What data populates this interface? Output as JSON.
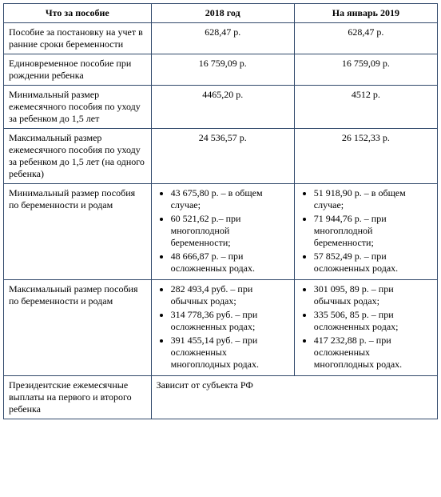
{
  "header": {
    "col1": "Что за пособие",
    "col2": "2018 год",
    "col3": "На январь 2019"
  },
  "rows": {
    "r1": {
      "label": "Пособие за постановку на учет в ранние сроки беременности",
      "v2018": "628,47 р.",
      "v2019": "628,47 р."
    },
    "r2": {
      "label": "Единовременное пособие при рождении ребенка",
      "v2018": "16 759,09 р.",
      "v2019": "16 759,09 р."
    },
    "r3": {
      "label": "Минимальный размер ежемесячного пособия по уходу за ребенком до 1,5 лет",
      "v2018": "4465,20 р.",
      "v2019": "4512 р."
    },
    "r4": {
      "label": "Максимальный размер ежемесячного пособия по уходу за ребенком до 1,5 лет (на одного ребенка)",
      "v2018": "24 536,57 р.",
      "v2019": "26 152,33 р."
    },
    "r5": {
      "label": "Минимальный размер пособия по беременности и родам",
      "list2018": {
        "i1": "43 675,80 р. – в общем случае;",
        "i2": "60 521,62 р.– при многоплодной беременности;",
        "i3": "48 666,87 р. – при осложненных родах."
      },
      "list2019": {
        "i1": "51 918,90 р. – в общем случае;",
        "i2": "71 944,76 р. – при многоплодной беременности;",
        "i3": "57 852,49 р. – при осложненных родах."
      }
    },
    "r6": {
      "label": "Максимальный размер пособия по беременности и родам",
      "list2018": {
        "i1": "282 493,4 руб. – при обычных родах;",
        "i2": "314 778,36 руб. – при осложненных родах;",
        "i3": "391 455,14 руб. – при осложненных многоплодных родах."
      },
      "list2019": {
        "i1": "301 095, 89 р. – при обычных родах;",
        "i2": "335 506, 85 р. – при осложненных родах;",
        "i3": "417 232,88 р. – при осложненных многоплодных родах."
      }
    },
    "r7": {
      "label": "Президентские ежемесячные выплаты на первого и второго ребенка",
      "merged": "Зависит от субъекта РФ"
    }
  }
}
